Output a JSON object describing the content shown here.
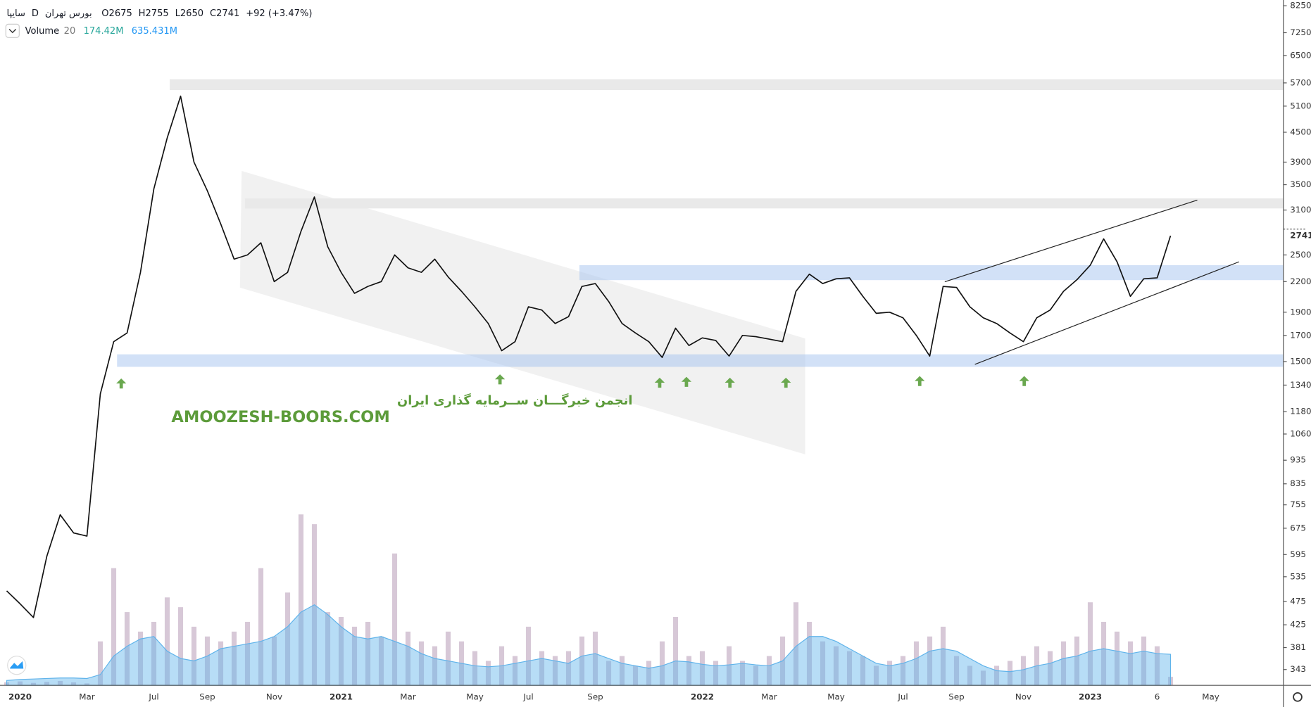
{
  "chart_data": [
    {
      "type": "line",
      "symbol": "سایپا",
      "interval": "D",
      "exchange": "بورس تهران",
      "ohlc_labels": [
        "O",
        "H",
        "L",
        "C"
      ],
      "ohlc": [
        2675,
        2755,
        2650,
        2741
      ],
      "change": "+92 (+3.47%)",
      "annotations": [
        "انجمن خبرگـــان ســرمایه گذاری ایران",
        "AMOOZESH-BOORS.COM"
      ],
      "log_scale": true,
      "grid": false,
      "color": "#111111",
      "ylim": [
        318,
        8480
      ],
      "yticks": [
        8250,
        7250,
        6500,
        5700,
        5100,
        4500,
        3900,
        3500,
        3100,
        2500,
        2200,
        1900,
        1700,
        1500,
        1340,
        1180,
        1060,
        935,
        835,
        755,
        675,
        595,
        535,
        475,
        425,
        381,
        343
      ],
      "categories": [
        null,
        "2020",
        null,
        null,
        null,
        null,
        "Mar",
        null,
        null,
        null,
        null,
        "Jul",
        null,
        null,
        null,
        "Sep",
        null,
        null,
        null,
        null,
        "Nov",
        null,
        null,
        null,
        null,
        "2021",
        null,
        null,
        null,
        null,
        "Mar",
        null,
        null,
        null,
        null,
        "May",
        null,
        null,
        null,
        "Jul",
        null,
        null,
        null,
        null,
        "Sep",
        null,
        null,
        null,
        null,
        null,
        null,
        null,
        "2022",
        null,
        null,
        null,
        null,
        "Mar",
        null,
        null,
        null,
        null,
        "May",
        null,
        null,
        null,
        null,
        "Jul",
        null,
        null,
        null,
        "Sep",
        null,
        null,
        null,
        null,
        "Nov",
        null,
        null,
        null,
        null,
        "2023",
        null,
        null,
        null,
        null,
        "6",
        null,
        null,
        null,
        "May",
        null,
        null,
        null,
        null,
        null
      ],
      "values": [
        500,
        470,
        440,
        590,
        720,
        660,
        650,
        1285,
        1650,
        1720,
        2300,
        3430,
        4380,
        5350,
        3900,
        3400,
        2900,
        2450,
        2500,
        2650,
        2200,
        2300,
        2800,
        3300,
        2600,
        2300,
        2080,
        2150,
        2200,
        2500,
        2350,
        2300,
        2450,
        2250,
        2100,
        1950,
        1800,
        1580,
        1650,
        1950,
        1920,
        1800,
        1860,
        2150,
        2180,
        2000,
        1800,
        1720,
        1650,
        1530,
        1760,
        1620,
        1680,
        1660,
        1540,
        1700,
        1690,
        1670,
        1650,
        2100,
        2280,
        2180,
        2230,
        2240,
        2050,
        1890,
        1900,
        1850,
        1700,
        1540,
        2150,
        2140,
        1950,
        1850,
        1800,
        1720,
        1650,
        1850,
        1920,
        2100,
        2220,
        2380,
        2700,
        2420,
        2050,
        2230,
        2240,
        2741,
        null,
        null,
        null,
        null,
        null,
        null,
        null,
        null
      ]
    },
    {
      "type": "bar",
      "indicator": "Volume",
      "length": 20,
      "last_labels": [
        "174.42M",
        "635.431M"
      ],
      "color": "#c9b6c9",
      "ma_color": "#5fb3ea",
      "values": [
        60,
        80,
        50,
        70,
        90,
        60,
        40,
        900,
        2400,
        1500,
        1100,
        1300,
        1800,
        1600,
        1200,
        1000,
        900,
        1100,
        1300,
        2400,
        1000,
        1900,
        3500,
        3300,
        1500,
        1400,
        1200,
        1300,
        1000,
        2700,
        1100,
        900,
        800,
        1100,
        900,
        700,
        500,
        800,
        600,
        1200,
        700,
        600,
        700,
        1000,
        1100,
        500,
        600,
        400,
        500,
        900,
        1400,
        600,
        700,
        500,
        800,
        500,
        400,
        600,
        1000,
        1700,
        1300,
        900,
        800,
        700,
        600,
        400,
        500,
        600,
        900,
        1000,
        1200,
        600,
        400,
        300,
        400,
        500,
        600,
        800,
        700,
        900,
        1000,
        1700,
        1300,
        1100,
        900,
        1000,
        800,
        174.42,
        null,
        null,
        null,
        null,
        null,
        null,
        null,
        null
      ],
      "ma_values": [
        100,
        120,
        130,
        140,
        150,
        150,
        140,
        220,
        600,
        800,
        950,
        1000,
        700,
        550,
        500,
        600,
        750,
        800,
        850,
        900,
        1000,
        1200,
        1500,
        1650,
        1450,
        1200,
        1000,
        950,
        1000,
        900,
        800,
        650,
        550,
        500,
        450,
        400,
        380,
        400,
        450,
        500,
        550,
        500,
        450,
        600,
        650,
        550,
        450,
        400,
        350,
        400,
        500,
        480,
        430,
        400,
        420,
        450,
        420,
        400,
        500,
        800,
        1000,
        1000,
        900,
        750,
        600,
        450,
        400,
        450,
        550,
        700,
        750,
        700,
        550,
        400,
        300,
        280,
        320,
        400,
        450,
        550,
        600,
        700,
        750,
        700,
        650,
        700,
        650,
        635.431,
        null,
        null,
        null,
        null,
        null,
        null,
        null,
        null
      ]
    }
  ]
}
